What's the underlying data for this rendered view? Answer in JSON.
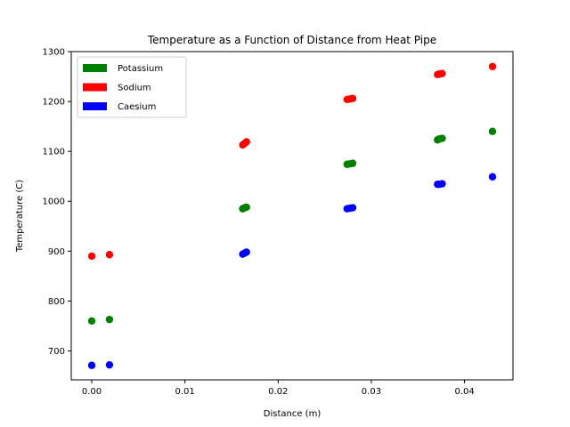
{
  "chart_data": {
    "type": "scatter",
    "title": "Temperature as a Function of Distance from Heat Pipe",
    "xlabel": "Distance (m)",
    "ylabel": "Temperature (C)",
    "xlim": [
      -0.0022,
      0.0452
    ],
    "ylim": [
      642,
      1300
    ],
    "xticks": [
      {
        "value": 0.0,
        "label": "0.00"
      },
      {
        "value": 0.01,
        "label": "0.01"
      },
      {
        "value": 0.02,
        "label": "0.02"
      },
      {
        "value": 0.03,
        "label": "0.03"
      },
      {
        "value": 0.04,
        "label": "0.04"
      }
    ],
    "yticks": [
      {
        "value": 700,
        "label": "700"
      },
      {
        "value": 800,
        "label": "800"
      },
      {
        "value": 900,
        "label": "900"
      },
      {
        "value": 1000,
        "label": "1000"
      },
      {
        "value": 1100,
        "label": "1100"
      },
      {
        "value": 1200,
        "label": "1200"
      },
      {
        "value": 1300,
        "label": "1300"
      }
    ],
    "grid": false,
    "legend_position": "upper-left",
    "series": [
      {
        "name": "Potassium",
        "color": "#008000",
        "points": [
          {
            "x": 0.0,
            "y": 760
          },
          {
            "x": 0.0019,
            "y": 763
          },
          {
            "x": 0.0162,
            "y": 985
          },
          {
            "x": 0.0164,
            "y": 987
          },
          {
            "x": 0.0166,
            "y": 988
          },
          {
            "x": 0.0274,
            "y": 1074
          },
          {
            "x": 0.0277,
            "y": 1075
          },
          {
            "x": 0.028,
            "y": 1076
          },
          {
            "x": 0.0371,
            "y": 1123
          },
          {
            "x": 0.0373,
            "y": 1125
          },
          {
            "x": 0.0376,
            "y": 1126
          },
          {
            "x": 0.043,
            "y": 1140
          }
        ]
      },
      {
        "name": "Sodium",
        "color": "#ff0000",
        "points": [
          {
            "x": 0.0,
            "y": 890
          },
          {
            "x": 0.0019,
            "y": 893
          },
          {
            "x": 0.0162,
            "y": 1113
          },
          {
            "x": 0.0164,
            "y": 1116
          },
          {
            "x": 0.0166,
            "y": 1119
          },
          {
            "x": 0.0274,
            "y": 1204
          },
          {
            "x": 0.0277,
            "y": 1205
          },
          {
            "x": 0.028,
            "y": 1206
          },
          {
            "x": 0.0371,
            "y": 1254
          },
          {
            "x": 0.0373,
            "y": 1255
          },
          {
            "x": 0.0376,
            "y": 1256
          },
          {
            "x": 0.043,
            "y": 1270
          }
        ]
      },
      {
        "name": "Caesium",
        "color": "#0000ff",
        "points": [
          {
            "x": 0.0,
            "y": 671
          },
          {
            "x": 0.0019,
            "y": 672
          },
          {
            "x": 0.0162,
            "y": 894
          },
          {
            "x": 0.0164,
            "y": 896
          },
          {
            "x": 0.0166,
            "y": 898
          },
          {
            "x": 0.0274,
            "y": 985
          },
          {
            "x": 0.0277,
            "y": 986
          },
          {
            "x": 0.028,
            "y": 987
          },
          {
            "x": 0.0371,
            "y": 1034
          },
          {
            "x": 0.0373,
            "y": 1034
          },
          {
            "x": 0.0376,
            "y": 1035
          },
          {
            "x": 0.043,
            "y": 1049
          }
        ]
      }
    ]
  }
}
